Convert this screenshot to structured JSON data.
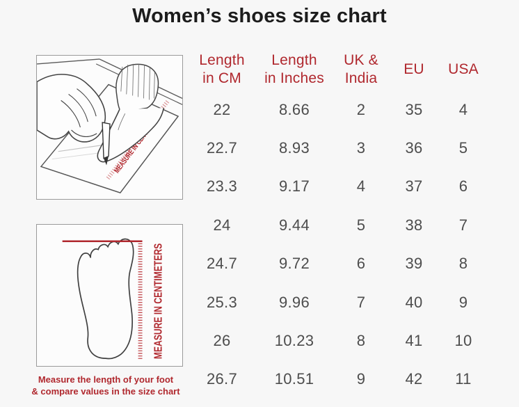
{
  "title": "Women’s shoes size chart",
  "colors": {
    "accent_red": "#b0282e",
    "data_gray": "#4d4d4d",
    "background": "#f7f7f7"
  },
  "left_panel": {
    "top_illustration": {
      "ruler_label": "MEASURE IN CENTIMETERS"
    },
    "bottom_illustration": {
      "ruler_label": "MEASURE IN CENTIMETERS"
    },
    "caption": "Measure the length of your foot\n& compare values in the size chart"
  },
  "table": {
    "headers": [
      "Length\nin CM",
      "Length\nin Inches",
      "UK &\nIndia",
      "EU",
      "USA"
    ],
    "rows": [
      [
        "22",
        "8.66",
        "2",
        "35",
        "4"
      ],
      [
        "22.7",
        "8.93",
        "3",
        "36",
        "5"
      ],
      [
        "23.3",
        "9.17",
        "4",
        "37",
        "6"
      ],
      [
        "24",
        "9.44",
        "5",
        "38",
        "7"
      ],
      [
        "24.7",
        "9.72",
        "6",
        "39",
        "8"
      ],
      [
        "25.3",
        "9.96",
        "7",
        "40",
        "9"
      ],
      [
        "26",
        "10.23",
        "8",
        "41",
        "10"
      ],
      [
        "26.7",
        "10.51",
        "9",
        "42",
        "11"
      ]
    ]
  }
}
